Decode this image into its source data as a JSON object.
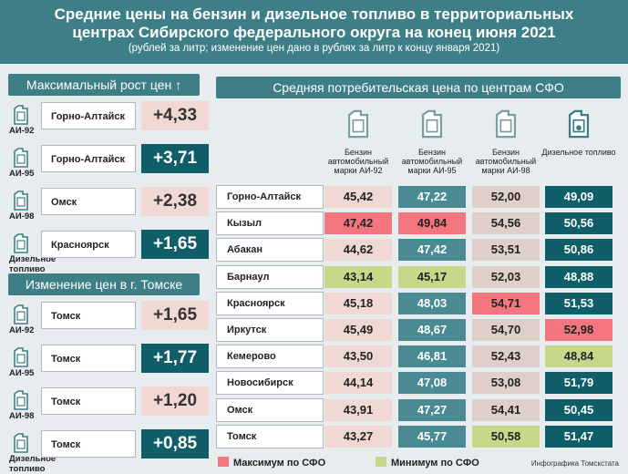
{
  "header": {
    "line1": "Средние цены на бензин и дизельное топливо в территориальных",
    "line2": "центрах Сибирского федерального округа на конец июня 2021",
    "line3": "(рублей за литр; изменение цен дано в рублях за литр к концу января 2021)"
  },
  "left": {
    "max_title": "Максимальный рост цен ↑",
    "max_items": [
      {
        "fuel": "АИ-92",
        "city": "Горно-Алтайск",
        "delta": "+4,33",
        "style": "pink"
      },
      {
        "fuel": "АИ-95",
        "city": "Горно-Алтайск",
        "delta": "+3,71",
        "style": "teal"
      },
      {
        "fuel": "АИ-98",
        "city": "Омск",
        "delta": "+2,38",
        "style": "pink"
      },
      {
        "fuel": "Дизельное\nтопливо",
        "city": "Красноярск",
        "delta": "+1,65",
        "style": "teal"
      }
    ],
    "tomsk_title": "Изменение цен в г. Томске",
    "tomsk_items": [
      {
        "fuel": "АИ-92",
        "city": "Томск",
        "delta": "+1,65",
        "style": "pink"
      },
      {
        "fuel": "АИ-95",
        "city": "Томск",
        "delta": "+1,77",
        "style": "teal"
      },
      {
        "fuel": "АИ-98",
        "city": "Томск",
        "delta": "+1,20",
        "style": "pink"
      },
      {
        "fuel": "Дизельное\nтопливо",
        "city": "Томск",
        "delta": "+0,85",
        "style": "teal"
      }
    ]
  },
  "chart_data": {
    "type": "table",
    "title": "Средняя потребительская цена по центрам СФО",
    "columns": [
      "Бензин автомобильный марки АИ-92",
      "Бензин автомобильный марки АИ-95",
      "Бензин автомобильный марки АИ-98",
      "Дизельное топливо"
    ],
    "rows": [
      {
        "city": "Горно-Алтайск",
        "values": [
          "45,42",
          "47,22",
          "52,00",
          "49,09"
        ],
        "flags": [
          "",
          "",
          "",
          ""
        ]
      },
      {
        "city": "Кызыл",
        "values": [
          "47,42",
          "49,84",
          "54,56",
          "50,56"
        ],
        "flags": [
          "max",
          "max",
          "",
          ""
        ]
      },
      {
        "city": "Абакан",
        "values": [
          "44,62",
          "47,42",
          "53,51",
          "50,86"
        ],
        "flags": [
          "",
          "",
          "",
          ""
        ]
      },
      {
        "city": "Барнаул",
        "values": [
          "43,14",
          "45,17",
          "52,03",
          "48,88"
        ],
        "flags": [
          "min",
          "min",
          "",
          ""
        ]
      },
      {
        "city": "Красноярск",
        "values": [
          "45,18",
          "48,03",
          "54,71",
          "51,53"
        ],
        "flags": [
          "",
          "",
          "max",
          ""
        ]
      },
      {
        "city": "Иркутск",
        "values": [
          "45,49",
          "48,67",
          "54,70",
          "52,98"
        ],
        "flags": [
          "",
          "",
          "",
          "max"
        ]
      },
      {
        "city": "Кемерово",
        "values": [
          "43,50",
          "46,81",
          "52,43",
          "48,84"
        ],
        "flags": [
          "",
          "",
          "",
          "min"
        ]
      },
      {
        "city": "Новосибирск",
        "values": [
          "44,14",
          "47,08",
          "53,08",
          "51,79"
        ],
        "flags": [
          "",
          "",
          "",
          ""
        ]
      },
      {
        "city": "Омск",
        "values": [
          "43,91",
          "47,27",
          "54,41",
          "50,45"
        ],
        "flags": [
          "",
          "",
          "",
          ""
        ]
      },
      {
        "city": "Томск",
        "values": [
          "43,27",
          "45,77",
          "50,58",
          "51,47"
        ],
        "flags": [
          "",
          "",
          "min",
          ""
        ]
      }
    ]
  },
  "legend": {
    "max": "Максимум по СФО",
    "min": "Минимум по СФО"
  },
  "credit": "Инфографика Томскстата",
  "colors": {
    "header": "#3e7f87",
    "col1": "#f0d8d3",
    "col2": "#4a8a93",
    "col3": "#ded0c9",
    "col4": "#0f5e68",
    "max": "#f3767f",
    "min": "#c6d98a"
  }
}
